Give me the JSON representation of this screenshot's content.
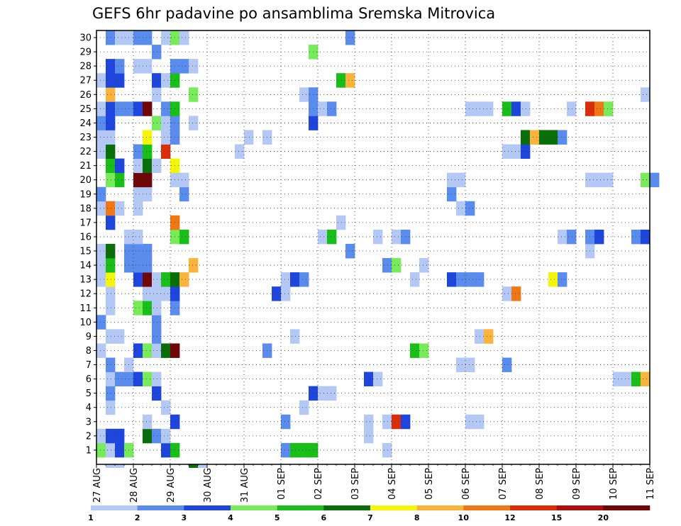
{
  "chart_data": {
    "type": "heatmap",
    "title": "GEFS 6hr padavine po ansamblima Sremska Mitrovica",
    "x_tick_labels": [
      "27 AUG",
      "28 AUG",
      "29 AUG",
      "30 AUG",
      "31 AUG",
      "01 SEP",
      "02 SEP",
      "03 SEP",
      "04 SEP",
      "05 SEP",
      "06 SEP",
      "07 SEP",
      "08 SEP",
      "09 SEP",
      "10 SEP",
      "11 SEP"
    ],
    "y_tick_labels": [
      "1",
      "2",
      "3",
      "4",
      "5",
      "6",
      "7",
      "8",
      "9",
      "10",
      "11",
      "12",
      "13",
      "14",
      "15",
      "16",
      "17",
      "18",
      "19",
      "20",
      "21",
      "22",
      "23",
      "24",
      "25",
      "26",
      "27",
      "28",
      "29",
      "30"
    ],
    "x_steps_per_day": 4,
    "grid": true,
    "colorbar": {
      "position": "bottom",
      "labels": [
        "1",
        "2",
        "3",
        "4",
        "5",
        "6",
        "7",
        "8",
        "10",
        "12",
        "15",
        "20"
      ],
      "colors": [
        "#b4c8f5",
        "#5a8ced",
        "#1e46dc",
        "#78eb5a",
        "#19be19",
        "#0a6e0a",
        "#f5f50a",
        "#fab43c",
        "#f07814",
        "#dc2d0a",
        "#aa0f0f",
        "#700606"
      ]
    },
    "cells": [
      [
        1,
        0,
        3
      ],
      [
        1,
        1,
        0
      ],
      [
        1,
        2,
        2
      ],
      [
        1,
        3,
        3
      ],
      [
        1,
        7,
        2
      ],
      [
        1,
        8,
        4
      ],
      [
        1,
        20,
        1
      ],
      [
        1,
        21,
        4
      ],
      [
        1,
        22,
        4
      ],
      [
        1,
        23,
        4
      ],
      [
        1,
        31,
        0
      ],
      [
        2,
        0,
        0
      ],
      [
        2,
        1,
        2
      ],
      [
        2,
        2,
        2
      ],
      [
        2,
        5,
        5
      ],
      [
        2,
        6,
        1
      ],
      [
        2,
        7,
        0
      ],
      [
        2,
        29,
        0
      ],
      [
        3,
        5,
        0
      ],
      [
        3,
        8,
        2
      ],
      [
        3,
        20,
        1
      ],
      [
        3,
        31,
        0
      ],
      [
        3,
        32,
        9
      ],
      [
        3,
        33,
        2
      ],
      [
        3,
        40,
        0
      ],
      [
        3,
        41,
        0
      ],
      [
        3,
        29,
        0
      ],
      [
        4,
        1,
        0
      ],
      [
        4,
        7,
        0
      ],
      [
        4,
        22,
        0
      ],
      [
        5,
        1,
        1
      ],
      [
        5,
        6,
        2
      ],
      [
        5,
        23,
        2
      ],
      [
        5,
        24,
        0
      ],
      [
        5,
        25,
        0
      ],
      [
        6,
        1,
        0
      ],
      [
        6,
        2,
        1
      ],
      [
        6,
        3,
        1
      ],
      [
        6,
        4,
        2
      ],
      [
        6,
        5,
        3
      ],
      [
        6,
        6,
        0
      ],
      [
        6,
        29,
        2
      ],
      [
        6,
        30,
        0
      ],
      [
        6,
        56,
        0
      ],
      [
        6,
        57,
        0
      ],
      [
        6,
        58,
        4
      ],
      [
        6,
        59,
        7
      ],
      [
        7,
        1,
        1
      ],
      [
        7,
        3,
        0
      ],
      [
        7,
        39,
        0
      ],
      [
        7,
        40,
        0
      ],
      [
        7,
        44,
        1
      ],
      [
        8,
        0,
        0
      ],
      [
        8,
        4,
        2
      ],
      [
        8,
        5,
        3
      ],
      [
        8,
        6,
        0
      ],
      [
        8,
        7,
        5
      ],
      [
        8,
        8,
        11
      ],
      [
        8,
        18,
        1
      ],
      [
        8,
        34,
        4
      ],
      [
        8,
        35,
        3
      ],
      [
        9,
        1,
        0
      ],
      [
        9,
        2,
        0
      ],
      [
        9,
        6,
        1
      ],
      [
        9,
        21,
        0
      ],
      [
        9,
        41,
        0
      ],
      [
        9,
        42,
        7
      ],
      [
        10,
        0,
        1
      ],
      [
        10,
        6,
        1
      ],
      [
        11,
        1,
        0
      ],
      [
        11,
        4,
        3
      ],
      [
        11,
        5,
        4
      ],
      [
        11,
        6,
        0
      ],
      [
        11,
        8,
        1
      ],
      [
        12,
        1,
        0
      ],
      [
        12,
        5,
        0
      ],
      [
        12,
        6,
        0
      ],
      [
        12,
        7,
        0
      ],
      [
        12,
        8,
        2
      ],
      [
        12,
        19,
        2
      ],
      [
        12,
        20,
        0
      ],
      [
        12,
        44,
        0
      ],
      [
        12,
        45,
        8
      ],
      [
        13,
        0,
        0
      ],
      [
        13,
        1,
        6
      ],
      [
        13,
        4,
        2
      ],
      [
        13,
        5,
        11
      ],
      [
        13,
        6,
        0
      ],
      [
        13,
        7,
        4
      ],
      [
        13,
        8,
        5
      ],
      [
        13,
        9,
        7
      ],
      [
        13,
        20,
        0
      ],
      [
        13,
        21,
        2
      ],
      [
        13,
        22,
        1
      ],
      [
        13,
        34,
        0
      ],
      [
        13,
        38,
        2
      ],
      [
        13,
        39,
        1
      ],
      [
        13,
        40,
        1
      ],
      [
        13,
        41,
        1
      ],
      [
        13,
        49,
        6
      ],
      [
        13,
        50,
        1
      ],
      [
        14,
        0,
        0
      ],
      [
        14,
        1,
        4
      ],
      [
        14,
        3,
        1
      ],
      [
        14,
        4,
        1
      ],
      [
        14,
        5,
        1
      ],
      [
        14,
        10,
        7
      ],
      [
        14,
        31,
        1
      ],
      [
        14,
        32,
        3
      ],
      [
        14,
        35,
        0
      ],
      [
        15,
        0,
        0
      ],
      [
        15,
        1,
        5
      ],
      [
        15,
        3,
        1
      ],
      [
        15,
        4,
        1
      ],
      [
        15,
        5,
        1
      ],
      [
        15,
        27,
        1
      ],
      [
        15,
        53,
        0
      ],
      [
        16,
        3,
        0
      ],
      [
        16,
        4,
        0
      ],
      [
        16,
        8,
        3
      ],
      [
        16,
        9,
        4
      ],
      [
        16,
        24,
        0
      ],
      [
        16,
        25,
        4
      ],
      [
        16,
        30,
        0
      ],
      [
        16,
        32,
        0
      ],
      [
        16,
        33,
        1
      ],
      [
        16,
        50,
        0
      ],
      [
        16,
        51,
        1
      ],
      [
        16,
        53,
        1
      ],
      [
        16,
        54,
        2
      ],
      [
        16,
        58,
        1
      ],
      [
        16,
        59,
        2
      ],
      [
        17,
        1,
        2
      ],
      [
        17,
        8,
        8
      ],
      [
        17,
        26,
        0
      ],
      [
        18,
        0,
        0
      ],
      [
        18,
        1,
        8
      ],
      [
        18,
        2,
        0
      ],
      [
        18,
        4,
        0
      ],
      [
        18,
        39,
        0
      ],
      [
        18,
        40,
        1
      ],
      [
        19,
        0,
        1
      ],
      [
        19,
        4,
        0
      ],
      [
        19,
        5,
        0
      ],
      [
        19,
        9,
        1
      ],
      [
        19,
        38,
        1
      ],
      [
        20,
        1,
        3
      ],
      [
        20,
        2,
        4
      ],
      [
        20,
        4,
        11
      ],
      [
        20,
        5,
        11
      ],
      [
        20,
        8,
        0
      ],
      [
        20,
        9,
        0
      ],
      [
        20,
        38,
        0
      ],
      [
        20,
        39,
        0
      ],
      [
        20,
        53,
        0
      ],
      [
        20,
        54,
        0
      ],
      [
        20,
        55,
        0
      ],
      [
        20,
        59,
        3
      ],
      [
        20,
        60,
        1
      ],
      [
        21,
        1,
        4
      ],
      [
        21,
        2,
        2
      ],
      [
        21,
        4,
        0
      ],
      [
        21,
        5,
        5
      ],
      [
        21,
        6,
        0
      ],
      [
        21,
        8,
        6
      ],
      [
        22,
        0,
        0
      ],
      [
        22,
        1,
        5
      ],
      [
        22,
        4,
        1
      ],
      [
        22,
        5,
        4
      ],
      [
        22,
        7,
        9
      ],
      [
        22,
        15,
        0
      ],
      [
        22,
        44,
        0
      ],
      [
        22,
        45,
        0
      ],
      [
        22,
        46,
        2
      ],
      [
        23,
        0,
        0
      ],
      [
        23,
        1,
        0
      ],
      [
        23,
        5,
        6
      ],
      [
        23,
        7,
        0
      ],
      [
        23,
        8,
        1
      ],
      [
        23,
        16,
        0
      ],
      [
        23,
        18,
        0
      ],
      [
        23,
        46,
        5
      ],
      [
        23,
        47,
        7
      ],
      [
        23,
        48,
        5
      ],
      [
        23,
        49,
        5
      ],
      [
        23,
        50,
        1
      ],
      [
        24,
        0,
        1
      ],
      [
        24,
        1,
        2
      ],
      [
        24,
        6,
        3
      ],
      [
        24,
        7,
        0
      ],
      [
        24,
        8,
        1
      ],
      [
        24,
        10,
        0
      ],
      [
        24,
        23,
        2
      ],
      [
        25,
        0,
        0
      ],
      [
        25,
        1,
        2
      ],
      [
        25,
        2,
        1
      ],
      [
        25,
        3,
        1
      ],
      [
        25,
        4,
        2
      ],
      [
        25,
        5,
        11
      ],
      [
        25,
        7,
        1
      ],
      [
        25,
        8,
        4
      ],
      [
        25,
        23,
        1
      ],
      [
        25,
        24,
        0
      ],
      [
        25,
        25,
        1
      ],
      [
        25,
        40,
        0
      ],
      [
        25,
        41,
        0
      ],
      [
        25,
        42,
        0
      ],
      [
        25,
        44,
        4
      ],
      [
        25,
        45,
        2
      ],
      [
        25,
        46,
        0
      ],
      [
        25,
        51,
        0
      ],
      [
        25,
        53,
        9
      ],
      [
        25,
        54,
        8
      ],
      [
        25,
        55,
        3
      ],
      [
        26,
        1,
        7
      ],
      [
        26,
        6,
        0
      ],
      [
        26,
        10,
        3
      ],
      [
        26,
        22,
        0
      ],
      [
        26,
        23,
        1
      ],
      [
        26,
        59,
        0
      ],
      [
        27,
        0,
        0
      ],
      [
        27,
        1,
        2
      ],
      [
        27,
        2,
        2
      ],
      [
        27,
        6,
        2
      ],
      [
        27,
        7,
        0
      ],
      [
        27,
        8,
        4
      ],
      [
        27,
        26,
        4
      ],
      [
        27,
        27,
        7
      ],
      [
        28,
        1,
        2
      ],
      [
        28,
        2,
        1
      ],
      [
        28,
        4,
        0
      ],
      [
        28,
        5,
        0
      ],
      [
        28,
        8,
        1
      ],
      [
        28,
        9,
        1
      ],
      [
        28,
        10,
        0
      ],
      [
        29,
        6,
        1
      ],
      [
        29,
        23,
        3
      ],
      [
        30,
        1,
        1
      ],
      [
        30,
        2,
        0
      ],
      [
        30,
        3,
        0
      ],
      [
        30,
        4,
        1
      ],
      [
        30,
        5,
        1
      ],
      [
        30,
        7,
        0
      ],
      [
        30,
        8,
        3
      ],
      [
        30,
        9,
        0
      ],
      [
        30,
        27,
        1
      ]
    ],
    "below_axis_cells": [
      [
        1,
        0
      ],
      [
        2,
        0
      ],
      [
        10,
        5
      ],
      [
        11,
        0
      ]
    ]
  }
}
